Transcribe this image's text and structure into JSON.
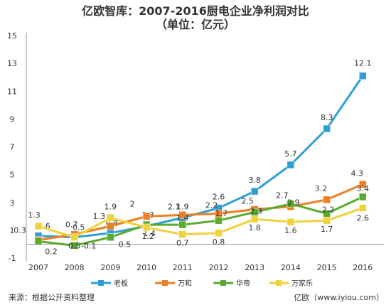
{
  "chart_data": {
    "type": "line",
    "title": "亿欧智库：2007-2016厨电企业净利润对比",
    "subtitle": "（单位：亿元）",
    "categories": [
      "2007",
      "2008",
      "2009",
      "2010",
      "2011",
      "2012",
      "2013",
      "2014",
      "2015",
      "2016"
    ],
    "ylim": [
      -1,
      15
    ],
    "yticks": [
      -1,
      1,
      3,
      5,
      7,
      9,
      11,
      13,
      15
    ],
    "grid": false,
    "legend_position": "bottom",
    "series": [
      {
        "name": "老板",
        "color": "#2e9fd6",
        "marker": "square",
        "values": [
          0.6,
          0.5,
          0.8,
          1.3,
          1.9,
          2.6,
          3.8,
          5.7,
          8.3,
          12.1
        ]
      },
      {
        "name": "万和",
        "color": "#ef7d22",
        "marker": "square",
        "values": [
          0.3,
          0.7,
          1.3,
          2.0,
          2.1,
          2.2,
          2.5,
          2.7,
          3.2,
          4.3
        ]
      },
      {
        "name": "华帝",
        "color": "#5aaa2e",
        "marker": "square",
        "values": [
          0.2,
          -0.1,
          0.5,
          1.4,
          1.4,
          1.7,
          2.3,
          2.9,
          2.2,
          3.4
        ]
      },
      {
        "name": "万家乐",
        "color": "#f0d23a",
        "marker": "square",
        "values": [
          1.3,
          0.5,
          1.9,
          1.2,
          0.7,
          0.8,
          1.8,
          1.6,
          1.7,
          2.6
        ]
      }
    ]
  },
  "footer": {
    "source": "来源：根据公开资料整理",
    "brand": "亿欧（www.iyiou.com）"
  }
}
